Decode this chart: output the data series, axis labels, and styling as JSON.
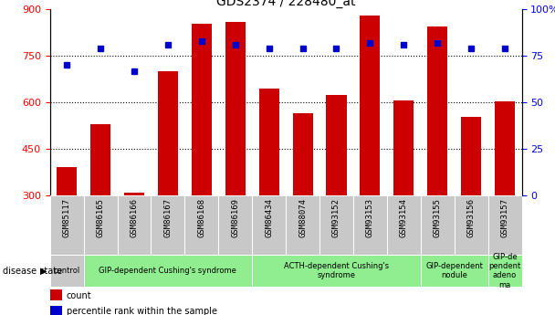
{
  "title": "GDS2374 / 228480_at",
  "samples": [
    "GSM85117",
    "GSM86165",
    "GSM86166",
    "GSM86167",
    "GSM86168",
    "GSM86169",
    "GSM86434",
    "GSM88074",
    "GSM93152",
    "GSM93153",
    "GSM93154",
    "GSM93155",
    "GSM93156",
    "GSM93157"
  ],
  "counts": [
    390,
    530,
    310,
    700,
    855,
    860,
    645,
    565,
    625,
    880,
    607,
    845,
    553,
    603
  ],
  "percentiles": [
    70,
    79,
    67,
    81,
    83,
    81,
    79,
    79,
    79,
    82,
    81,
    82,
    79,
    79
  ],
  "ylim_left": [
    300,
    900
  ],
  "ylim_right": [
    0,
    100
  ],
  "yticks_left": [
    300,
    450,
    600,
    750,
    900
  ],
  "yticks_right": [
    0,
    25,
    50,
    75,
    100
  ],
  "bar_color": "#cc0000",
  "dot_color": "#0000cc",
  "background_color": "#ffffff",
  "tick_bg_color": "#c8c8c8",
  "disease_groups": [
    {
      "label": "control",
      "start": 0,
      "end": 1,
      "color": "#c8c8c8"
    },
    {
      "label": "GIP-dependent Cushing's syndrome",
      "start": 1,
      "end": 6,
      "color": "#90ee90"
    },
    {
      "label": "ACTH-dependent Cushing's\nsyndrome",
      "start": 6,
      "end": 11,
      "color": "#90ee90"
    },
    {
      "label": "GIP-dependent\nnodule",
      "start": 11,
      "end": 13,
      "color": "#90ee90"
    },
    {
      "label": "GIP-de\npendent\nadeno\nma",
      "start": 13,
      "end": 14,
      "color": "#90ee90"
    }
  ],
  "legend_count_label": "count",
  "legend_percentile_label": "percentile rank within the sample",
  "xlabel_disease": "disease state",
  "tick_label_fontsize": 6.5,
  "title_fontsize": 10,
  "group_label_fontsize": 6,
  "legend_fontsize": 7
}
